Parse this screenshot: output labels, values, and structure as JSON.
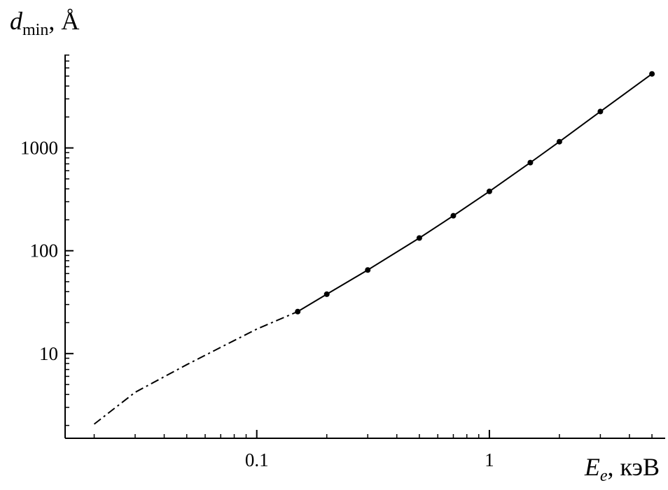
{
  "chart_data": {
    "type": "line",
    "ylabel": {
      "symbol": "d",
      "subscript": "min",
      "unit": ", Å"
    },
    "xlabel": {
      "symbol": "E",
      "subscript": "e",
      "unit": ", кэВ"
    },
    "log_x": true,
    "log_y": true,
    "xlim": [
      0.015,
      5.7
    ],
    "ylim": [
      1.5,
      8100
    ],
    "xticks": [
      0.1,
      1
    ],
    "yticks": [
      10,
      100,
      1000
    ],
    "xminorticks": [
      0.02,
      0.03,
      0.04,
      0.05,
      0.06,
      0.07,
      0.08,
      0.09,
      0.2,
      0.3,
      0.4,
      0.5,
      0.6,
      0.7,
      0.8,
      0.9,
      2,
      3,
      4,
      5
    ],
    "yminorticks": [
      2,
      3,
      4,
      5,
      6,
      7,
      8,
      9,
      20,
      30,
      40,
      50,
      60,
      70,
      80,
      90,
      200,
      300,
      400,
      500,
      600,
      700,
      800,
      900,
      2000,
      3000,
      4000,
      5000,
      6000,
      7000,
      8000
    ],
    "series": [
      {
        "color": "#000000",
        "style": "dashdot",
        "markers": false,
        "x": [
          0.02,
          0.03,
          0.05,
          0.07,
          0.1,
          0.15
        ],
        "values": [
          2.06,
          4.2,
          7.8,
          11.5,
          17.3,
          25.6
        ]
      },
      {
        "color": "#000000",
        "style": "solid",
        "markers": true,
        "x": [
          0.15,
          0.2,
          0.3,
          0.5,
          0.7,
          1,
          1.5,
          2,
          3,
          5
        ],
        "values": [
          25.6,
          37.8,
          65,
          133,
          219,
          378,
          720,
          1150,
          2260,
          5250
        ]
      }
    ]
  }
}
